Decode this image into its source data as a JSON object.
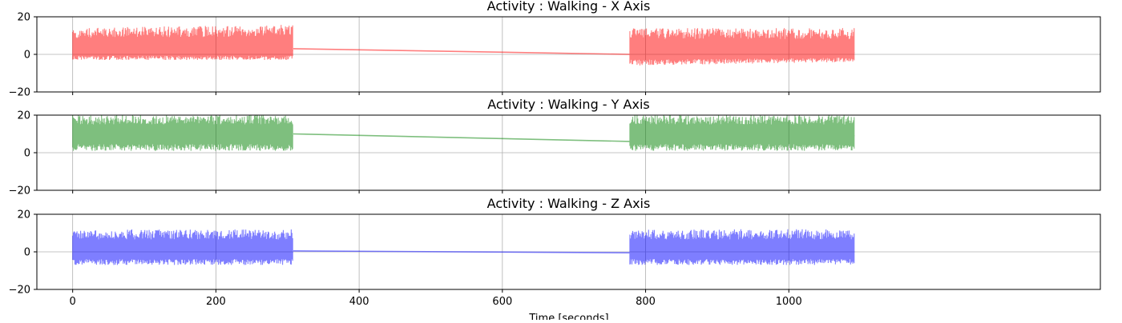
{
  "chart_data": [
    {
      "type": "line",
      "title": "Activity : Walking - X Axis",
      "color": "#ff0000",
      "xlim": [
        -50,
        1435
      ],
      "ylim": [
        -20,
        20
      ],
      "xticks": [
        0,
        200,
        400,
        600,
        800,
        1000
      ],
      "yticks": [
        -20,
        0,
        20
      ],
      "grid": true,
      "series": [
        {
          "segment": "envelope",
          "x": [
            0,
            308
          ],
          "y_max": [
            14,
            16
          ],
          "y_min": [
            -3,
            -3
          ],
          "baseline": 2
        },
        {
          "segment": "connector",
          "x": [
            308,
            778
          ],
          "y": [
            3,
            0
          ]
        },
        {
          "segment": "envelope",
          "x": [
            778,
            1092
          ],
          "y_max": [
            14,
            14
          ],
          "y_min": [
            -6,
            -4
          ],
          "baseline": 1
        }
      ]
    },
    {
      "type": "line",
      "title": "Activity : Walking - Y Axis",
      "color": "#008000",
      "xlim": [
        -50,
        1435
      ],
      "ylim": [
        -20,
        20
      ],
      "xticks": [
        0,
        200,
        400,
        600,
        800,
        1000
      ],
      "yticks": [
        -20,
        0,
        20
      ],
      "grid": true,
      "series": [
        {
          "segment": "envelope",
          "x": [
            0,
            308
          ],
          "y_max": [
            20,
            20
          ],
          "y_min": [
            1,
            1
          ],
          "baseline": 9
        },
        {
          "segment": "connector",
          "x": [
            308,
            778
          ],
          "y": [
            10,
            6
          ]
        },
        {
          "segment": "envelope",
          "x": [
            778,
            1092
          ],
          "y_max": [
            20,
            20
          ],
          "y_min": [
            1,
            1
          ],
          "baseline": 9
        }
      ]
    },
    {
      "type": "line",
      "title": "Activity : Walking - Z Axis",
      "color": "#0000ff",
      "xlim": [
        -50,
        1435
      ],
      "ylim": [
        -20,
        20
      ],
      "xticks": [
        0,
        200,
        400,
        600,
        800,
        1000
      ],
      "yticks": [
        -20,
        0,
        20
      ],
      "grid": true,
      "series": [
        {
          "segment": "envelope",
          "x": [
            0,
            308
          ],
          "y_max": [
            12,
            12
          ],
          "y_min": [
            -7,
            -7
          ],
          "baseline": 0
        },
        {
          "segment": "connector",
          "x": [
            308,
            778
          ],
          "y": [
            0.5,
            -0.5
          ]
        },
        {
          "segment": "envelope",
          "x": [
            778,
            1092
          ],
          "y_max": [
            12,
            12
          ],
          "y_min": [
            -7,
            -7
          ],
          "baseline": 0
        }
      ]
    }
  ],
  "xlabel": "Time [seconds]"
}
